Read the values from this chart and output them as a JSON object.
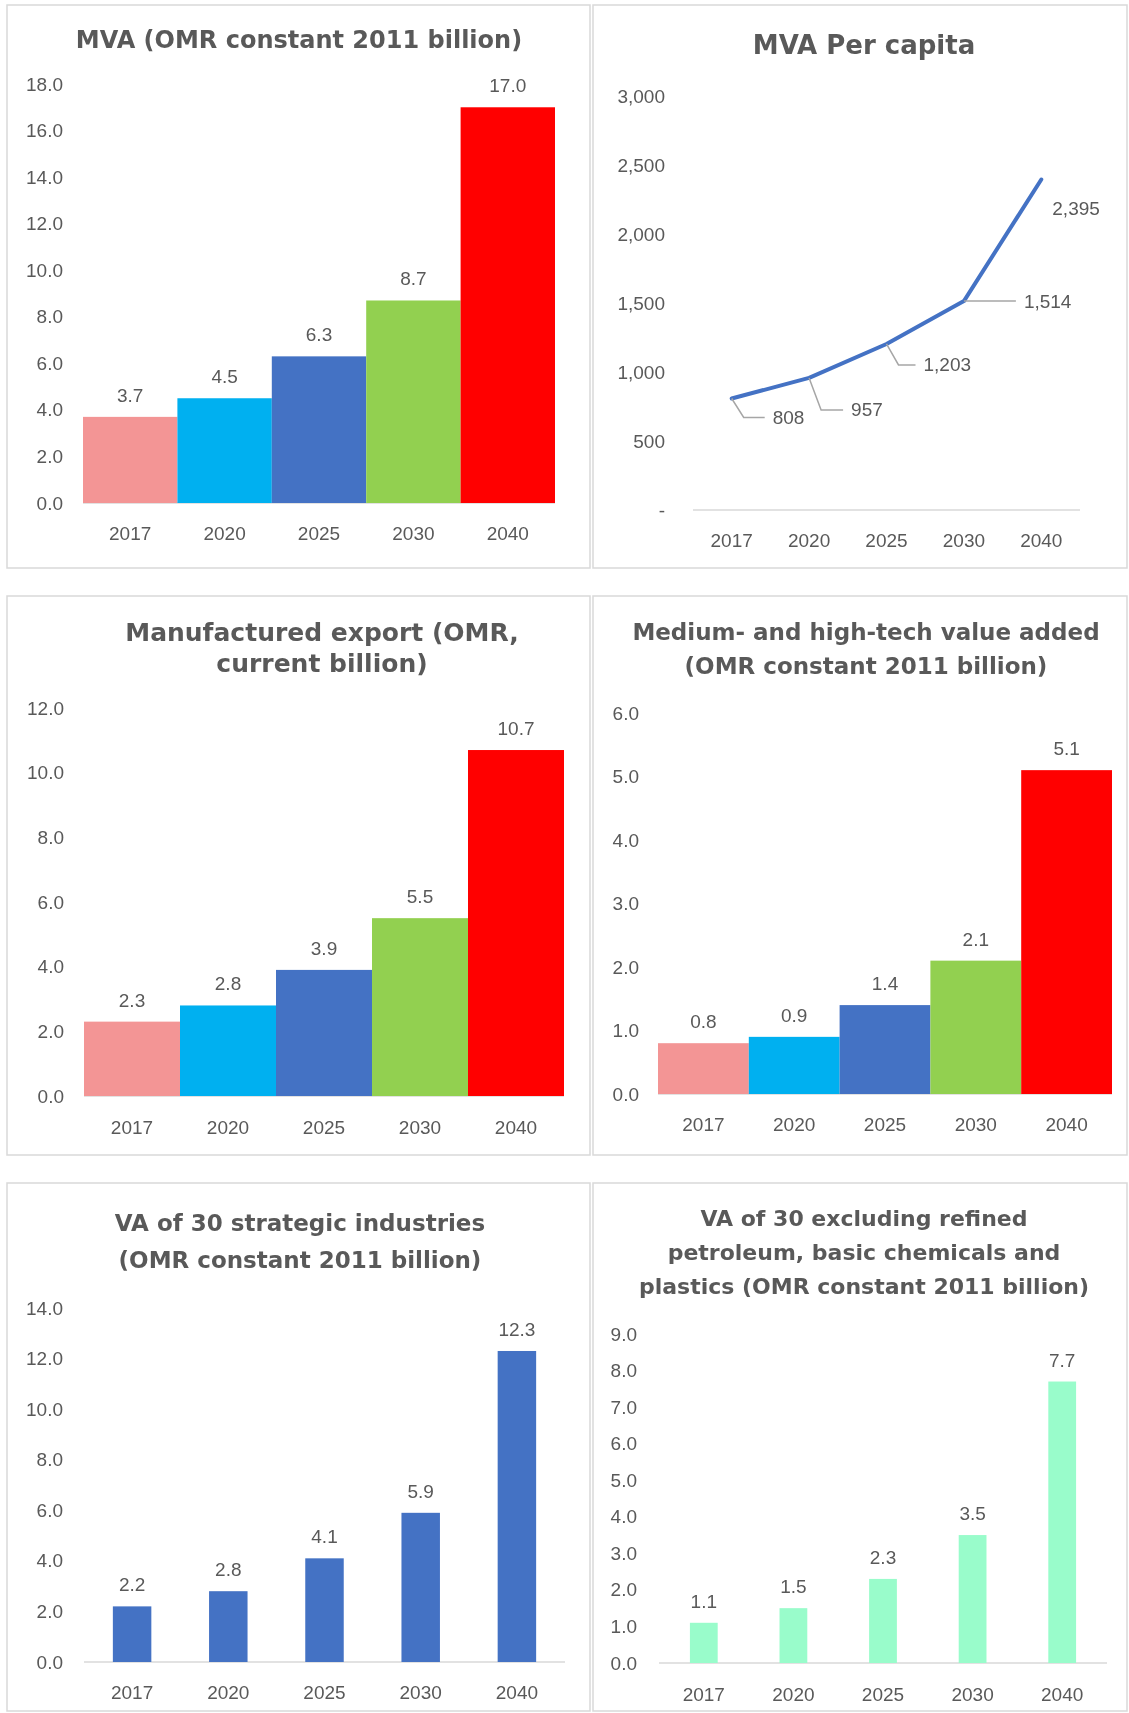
{
  "chart_data": [
    {
      "type": "bar",
      "title": "MVA (OMR constant 2011 billion)",
      "categories": [
        "2017",
        "2020",
        "2025",
        "2030",
        "2040"
      ],
      "values": [
        3.7,
        4.5,
        6.3,
        8.7,
        17.0
      ],
      "colors": [
        "#f39595",
        "#00b0f0",
        "#4472c4",
        "#92d050",
        "#ff0000"
      ],
      "value_labels": [
        "3.7",
        "4.5",
        "6.3",
        "8.7",
        "17.0"
      ],
      "ylim": [
        0,
        18
      ],
      "yticks": [
        {
          "value": 0,
          "label": "0.0"
        },
        {
          "value": 2,
          "label": "2.0"
        },
        {
          "value": 4,
          "label": "4.0"
        },
        {
          "value": 6,
          "label": "6.0"
        },
        {
          "value": 8,
          "label": "8.0"
        },
        {
          "value": 10,
          "label": "10.0"
        },
        {
          "value": 12,
          "label": "12.0"
        },
        {
          "value": 14,
          "label": "14.0"
        },
        {
          "value": 16,
          "label": "16.0"
        },
        {
          "value": 18,
          "label": "18.0"
        }
      ]
    },
    {
      "type": "line",
      "title": "MVA Per capita",
      "categories": [
        "2017",
        "2020",
        "2025",
        "2030",
        "2040"
      ],
      "values": [
        808,
        957,
        1203,
        1514,
        2395
      ],
      "color": "#4472c4",
      "value_labels": [
        "808",
        "957",
        "1,203",
        "1,514",
        "2,395"
      ],
      "ylim": [
        0,
        3000
      ],
      "yticks": [
        {
          "value": 0,
          "label": "-"
        },
        500,
        {
          "value": 1000,
          "label": "1,000"
        },
        {
          "value": 1500,
          "label": "1,500"
        },
        {
          "value": 2000,
          "label": "2,000"
        },
        {
          "value": 2500,
          "label": "2,500"
        },
        {
          "value": 3000,
          "label": "3,000"
        }
      ]
    },
    {
      "type": "bar",
      "title": "Manufactured export (OMR,\ncurrent billion)",
      "categories": [
        "2017",
        "2020",
        "2025",
        "2030",
        "2040"
      ],
      "values": [
        2.3,
        2.8,
        3.9,
        5.5,
        10.7
      ],
      "colors": [
        "#f39595",
        "#00b0f0",
        "#4472c4",
        "#92d050",
        "#ff0000"
      ],
      "value_labels": [
        "2.3",
        "2.8",
        "3.9",
        "5.5",
        "10.7"
      ],
      "ylim": [
        0,
        12
      ],
      "yticks": [
        {
          "value": 0,
          "label": "0.0"
        },
        {
          "value": 2,
          "label": "2.0"
        },
        {
          "value": 4,
          "label": "4.0"
        },
        {
          "value": 6,
          "label": "6.0"
        },
        {
          "value": 8,
          "label": "8.0"
        },
        {
          "value": 10,
          "label": "10.0"
        },
        {
          "value": 12,
          "label": "12.0"
        }
      ]
    },
    {
      "type": "bar",
      "title": "Medium- and high-tech value added\n(OMR constant 2011 billion)",
      "categories": [
        "2017",
        "2020",
        "2025",
        "2030",
        "2040"
      ],
      "values": [
        0.8,
        0.9,
        1.4,
        2.1,
        5.1
      ],
      "colors": [
        "#f39595",
        "#00b0f0",
        "#4472c4",
        "#92d050",
        "#ff0000"
      ],
      "value_labels": [
        "0.8",
        "0.9",
        "1.4",
        "2.1",
        "5.1"
      ],
      "ylim": [
        0,
        6
      ],
      "yticks": [
        {
          "value": 0,
          "label": "0.0"
        },
        {
          "value": 1,
          "label": "1.0"
        },
        {
          "value": 2,
          "label": "2.0"
        },
        {
          "value": 3,
          "label": "3.0"
        },
        {
          "value": 4,
          "label": "4.0"
        },
        {
          "value": 5,
          "label": "5.0"
        },
        {
          "value": 6,
          "label": "6.0"
        }
      ]
    },
    {
      "type": "bar",
      "title": "VA of 30 strategic industries\n(OMR constant 2011 billion)",
      "categories": [
        "2017",
        "2020",
        "2025",
        "2030",
        "2040"
      ],
      "values": [
        2.2,
        2.8,
        4.1,
        5.9,
        12.3
      ],
      "color": "#4472c4",
      "value_labels": [
        "2.2",
        "2.8",
        "4.1",
        "5.9",
        "12.3"
      ],
      "ylim": [
        0,
        14
      ],
      "yticks": [
        {
          "value": 0,
          "label": "0.0"
        },
        {
          "value": 2,
          "label": "2.0"
        },
        {
          "value": 4,
          "label": "4.0"
        },
        {
          "value": 6,
          "label": "6.0"
        },
        {
          "value": 8,
          "label": "8.0"
        },
        {
          "value": 10,
          "label": "10.0"
        },
        {
          "value": 12,
          "label": "12.0"
        },
        {
          "value": 14,
          "label": "14.0"
        }
      ]
    },
    {
      "type": "bar",
      "title": "VA of 30 excluding refined\npetroleum, basic chemicals and\nplastics (OMR constant 2011 billion)",
      "categories": [
        "2017",
        "2020",
        "2025",
        "2030",
        "2040"
      ],
      "values": [
        1.1,
        1.5,
        2.3,
        3.5,
        7.7
      ],
      "color": "#99fccb",
      "value_labels": [
        "1.1",
        "1.5",
        "2.3",
        "3.5",
        "7.7"
      ],
      "ylim": [
        0,
        9
      ],
      "yticks": [
        {
          "value": 0,
          "label": "0.0"
        },
        {
          "value": 1,
          "label": "1.0"
        },
        {
          "value": 2,
          "label": "2.0"
        },
        {
          "value": 3,
          "label": "3.0"
        },
        {
          "value": 4,
          "label": "4.0"
        },
        {
          "value": 5,
          "label": "5.0"
        },
        {
          "value": 6,
          "label": "6.0"
        },
        {
          "value": 7,
          "label": "7.0"
        },
        {
          "value": 8,
          "label": "8.0"
        },
        {
          "value": 9,
          "label": "9.0"
        }
      ]
    }
  ]
}
